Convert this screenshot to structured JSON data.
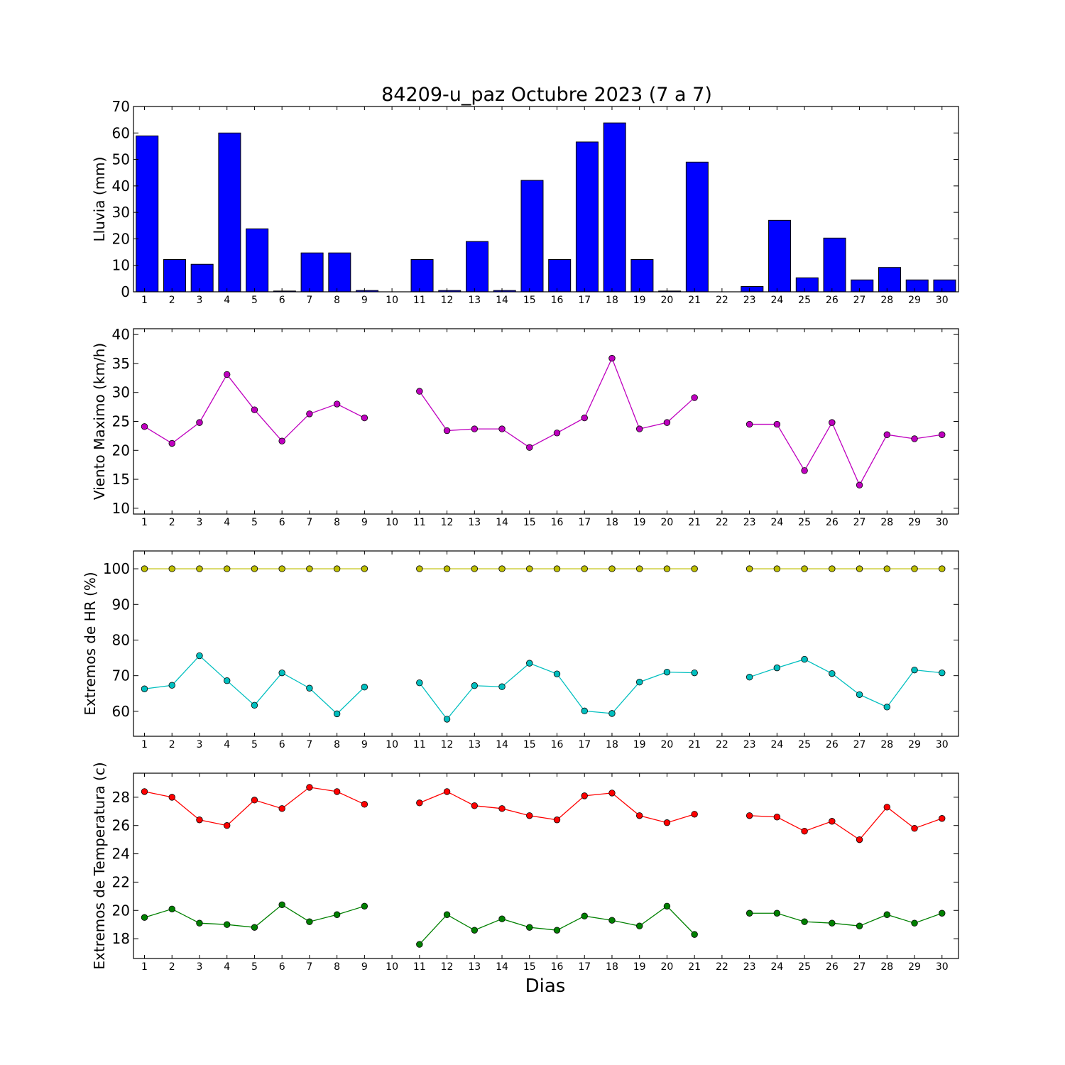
{
  "chart_data": [
    {
      "type": "bar",
      "title": "84209-u_paz Octubre 2023  (7 a 7)",
      "ylabel": "Lluvia (mm)",
      "xlabel": "",
      "ylim": [
        0,
        70
      ],
      "yticks": [
        0,
        10,
        20,
        30,
        40,
        50,
        60,
        70
      ],
      "x": [
        1,
        2,
        3,
        4,
        5,
        6,
        7,
        8,
        9,
        10,
        11,
        12,
        13,
        14,
        15,
        16,
        17,
        18,
        19,
        20,
        21,
        22,
        23,
        24,
        25,
        26,
        27,
        28,
        29,
        30
      ],
      "color": "#0000ff",
      "series": [
        {
          "name": "",
          "values": [
            58.9,
            12.2,
            10.4,
            60.0,
            23.8,
            0.3,
            14.7,
            14.7,
            0.5,
            0.0,
            12.2,
            0.5,
            19.0,
            0.5,
            42.1,
            12.2,
            56.6,
            63.8,
            12.2,
            0.3,
            49.0,
            0.0,
            2.0,
            27.0,
            5.3,
            20.3,
            4.5,
            9.2,
            4.5,
            4.5
          ]
        }
      ]
    },
    {
      "type": "line",
      "ylabel": "Viento Maximo (km/h)",
      "xlabel": "",
      "ylim": [
        9,
        41
      ],
      "yticks": [
        10,
        15,
        20,
        25,
        30,
        35,
        40
      ],
      "x": [
        1,
        2,
        3,
        4,
        5,
        6,
        7,
        8,
        9,
        10,
        11,
        12,
        13,
        14,
        15,
        16,
        17,
        18,
        19,
        20,
        21,
        22,
        23,
        24,
        25,
        26,
        27,
        28,
        29,
        30
      ],
      "series": [
        {
          "name": "",
          "color": "#bf00bf",
          "values": [
            24.1,
            21.2,
            24.8,
            33.1,
            27.0,
            21.6,
            26.3,
            28.0,
            25.6,
            null,
            30.2,
            23.4,
            23.7,
            23.7,
            20.5,
            23.0,
            25.6,
            35.9,
            23.7,
            24.8,
            29.1,
            null,
            24.5,
            24.5,
            16.5,
            24.8,
            14.0,
            22.7,
            22.0,
            22.7
          ]
        }
      ]
    },
    {
      "type": "line",
      "ylabel": "Extremos de HR (%)",
      "xlabel": "",
      "ylim": [
        53,
        105
      ],
      "yticks": [
        60,
        70,
        80,
        90,
        100
      ],
      "x": [
        1,
        2,
        3,
        4,
        5,
        6,
        7,
        8,
        9,
        10,
        11,
        12,
        13,
        14,
        15,
        16,
        17,
        18,
        19,
        20,
        21,
        22,
        23,
        24,
        25,
        26,
        27,
        28,
        29,
        30
      ],
      "series": [
        {
          "name": "",
          "color": "#bfbf00",
          "values": [
            100,
            100,
            100,
            100,
            100,
            100,
            100,
            100,
            100,
            null,
            100,
            100,
            100,
            100,
            100,
            100,
            100,
            100,
            100,
            100,
            100,
            null,
            100,
            100,
            100,
            100,
            100,
            100,
            100,
            100
          ]
        },
        {
          "name": "",
          "color": "#00bfbf",
          "values": [
            66.3,
            67.3,
            75.6,
            68.6,
            61.7,
            70.8,
            66.5,
            59.3,
            66.8,
            null,
            68.0,
            57.8,
            67.2,
            66.9,
            73.5,
            70.5,
            60.1,
            59.4,
            68.2,
            71.0,
            70.8,
            null,
            69.6,
            72.2,
            74.6,
            70.6,
            64.7,
            61.2,
            71.6,
            70.8
          ]
        }
      ]
    },
    {
      "type": "line",
      "ylabel": "Extremos de Temperatura (c)",
      "xlabel": "Dias",
      "ylim": [
        16.6,
        29.7
      ],
      "yticks": [
        18,
        20,
        22,
        24,
        26,
        28
      ],
      "x": [
        1,
        2,
        3,
        4,
        5,
        6,
        7,
        8,
        9,
        10,
        11,
        12,
        13,
        14,
        15,
        16,
        17,
        18,
        19,
        20,
        21,
        22,
        23,
        24,
        25,
        26,
        27,
        28,
        29,
        30
      ],
      "series": [
        {
          "name": "",
          "color": "#ff0000",
          "values": [
            28.4,
            28.0,
            26.4,
            26.0,
            27.8,
            27.2,
            28.7,
            28.4,
            27.5,
            null,
            27.6,
            28.4,
            27.4,
            27.2,
            26.7,
            26.4,
            28.1,
            28.3,
            26.7,
            26.2,
            26.8,
            null,
            26.7,
            26.6,
            25.6,
            26.3,
            25.0,
            27.3,
            25.8,
            26.5
          ]
        },
        {
          "name": "",
          "color": "#008000",
          "values": [
            19.5,
            20.1,
            19.1,
            19.0,
            18.8,
            20.4,
            19.2,
            19.7,
            20.3,
            null,
            17.6,
            19.7,
            18.6,
            19.4,
            18.8,
            18.6,
            19.6,
            19.3,
            18.9,
            20.3,
            18.3,
            null,
            19.8,
            19.8,
            19.2,
            19.1,
            18.9,
            19.7,
            19.1,
            19.8
          ]
        }
      ]
    }
  ]
}
